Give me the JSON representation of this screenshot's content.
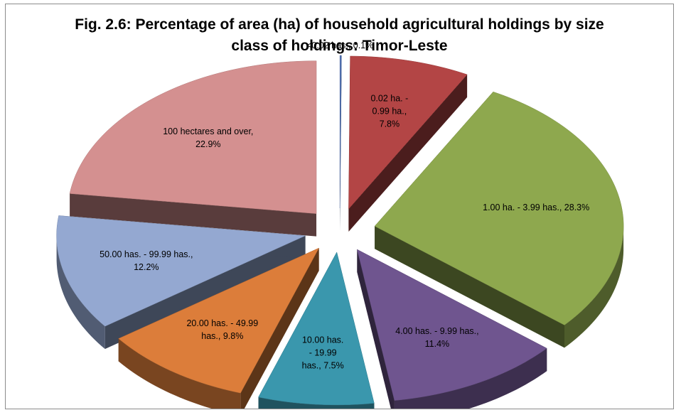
{
  "chart_data": {
    "type": "pie",
    "title_line1": "Fig. 2.6: Percentage of area (ha) of household agricultural holdings  by size",
    "title_line2": "class of holdings: Timor-Leste",
    "slices": [
      {
        "name": "<0.02 has.",
        "value": 0.1,
        "color": "#4f6fb0",
        "label": [
          "<0.02 has., 0.1%"
        ]
      },
      {
        "name": "0.02 ha. - 0.99 ha.",
        "value": 7.8,
        "color": "#b34545",
        "label": [
          "0.02 ha. -",
          "0.99 ha.,",
          "7.8%"
        ]
      },
      {
        "name": "1.00 ha. - 3.99 has.",
        "value": 28.3,
        "color": "#8ea84e",
        "label": [
          "1.00 ha. - 3.99 has., 28.3%"
        ]
      },
      {
        "name": "4.00 has. - 9.99 has.",
        "value": 11.4,
        "color": "#6f558f",
        "label": [
          "4.00 has. - 9.99 has.,",
          "11.4%"
        ]
      },
      {
        "name": "10.00 has. - 19.99 has.",
        "value": 7.5,
        "color": "#3a97ad",
        "label": [
          "10.00 has.",
          "- 19.99",
          "has., 7.5%"
        ]
      },
      {
        "name": "20.00 has. - 49.99 has.",
        "value": 9.8,
        "color": "#dc7d3a",
        "label": [
          "20.00 has. - 49.99",
          "has., 9.8%"
        ]
      },
      {
        "name": "50.00 has. - 99.99 has.",
        "value": 12.2,
        "color": "#94a8d1",
        "label": [
          "50.00 has. - 99.99 has.,",
          "12.2%"
        ]
      },
      {
        "name": "100 hectares and over",
        "value": 22.9,
        "color": "#d49090",
        "label": [
          "100 hectares and over,",
          "22.9%"
        ]
      }
    ]
  }
}
